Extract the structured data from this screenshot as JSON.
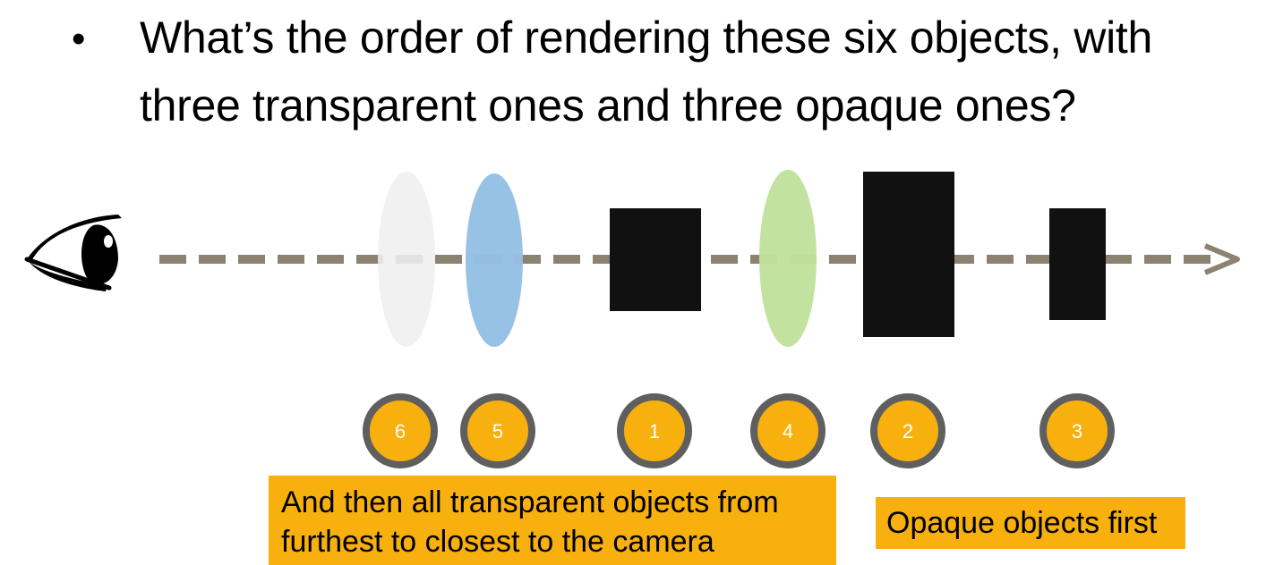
{
  "slide": {
    "bullet": "•",
    "question": "What’s the order of rendering these six objects, with three transparent ones and three opaque ones?"
  },
  "colors": {
    "arrow": "#8c8270",
    "badge_fill": "#f8b00e",
    "badge_ring": "#5f5f5f",
    "opaque_object": "#111111",
    "transparent_grey": "#efefef",
    "transparent_blue": "#94c0e4",
    "transparent_green": "#c0e29c",
    "callout_fill": "#f8b00e"
  },
  "icons": {
    "viewer": "eye-icon",
    "direction": "arrow-right-icon"
  },
  "objects": [
    {
      "kind": "transparent",
      "color": "grey",
      "order": "6"
    },
    {
      "kind": "transparent",
      "color": "blue",
      "order": "5"
    },
    {
      "kind": "opaque",
      "order": "1"
    },
    {
      "kind": "transparent",
      "color": "green",
      "order": "4"
    },
    {
      "kind": "opaque",
      "order": "2"
    },
    {
      "kind": "opaque",
      "order": "3"
    }
  ],
  "callouts": {
    "transparent_text": "And then all transparent objects from furthest to closest to the camera",
    "opaque_text": "Opaque objects first"
  }
}
